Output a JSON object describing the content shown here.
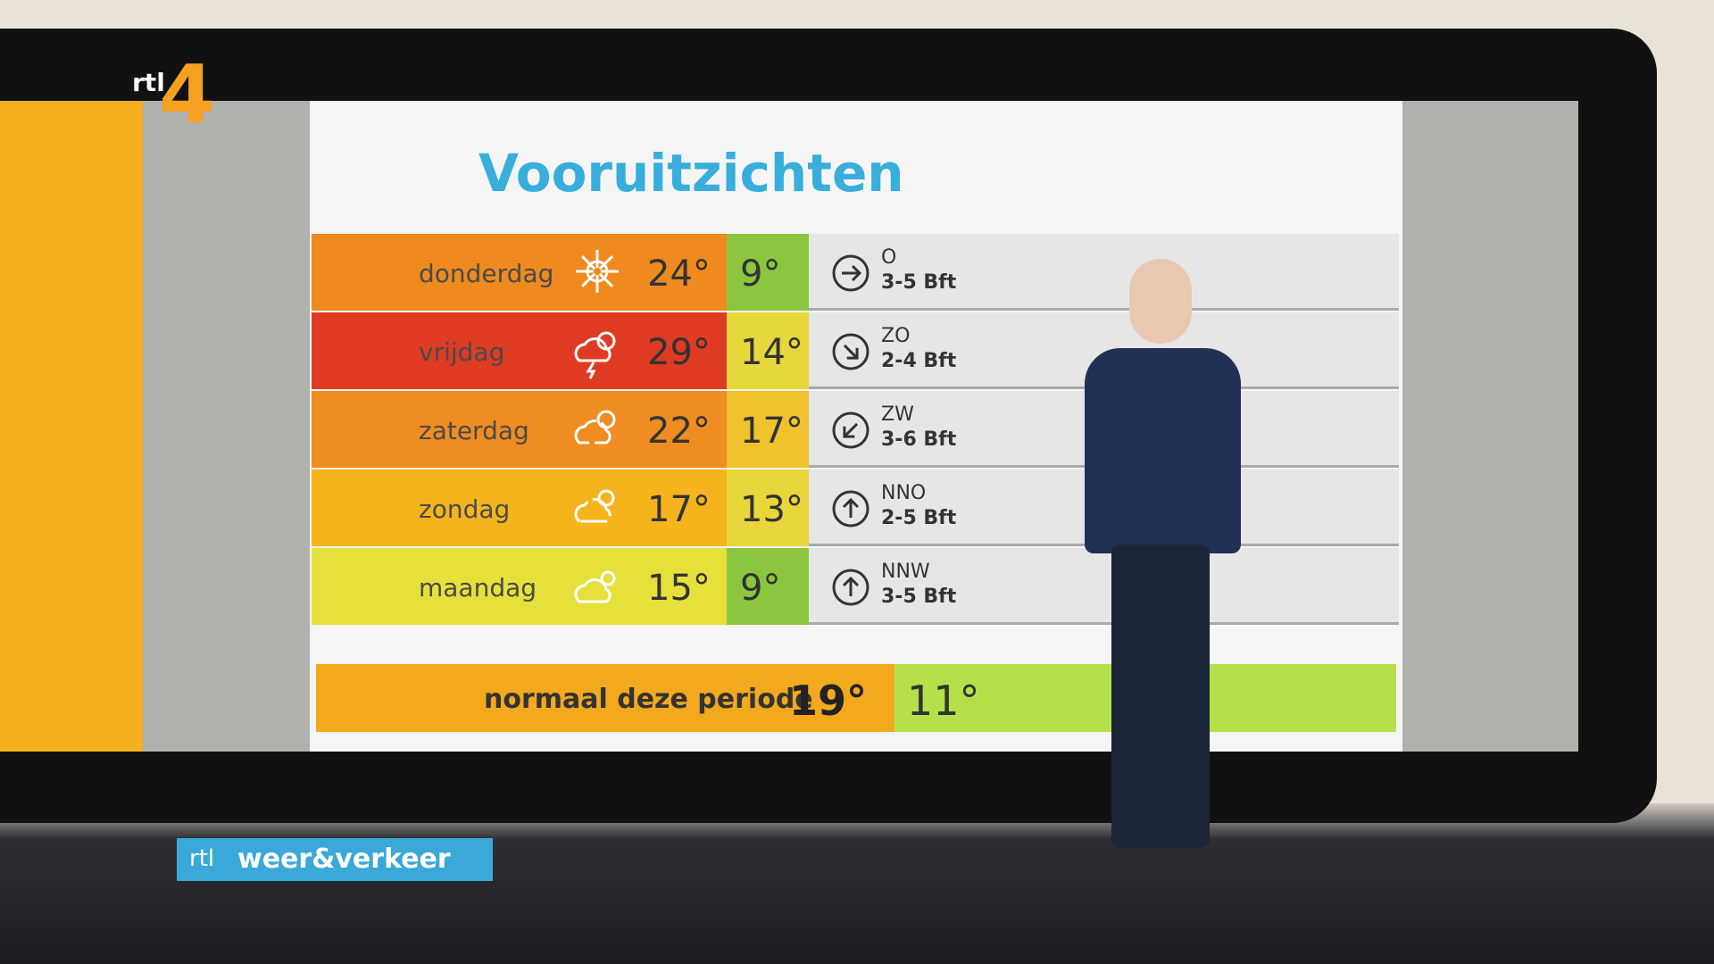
{
  "logo": {
    "channel": "rtl",
    "number": "4"
  },
  "title": "Vooruitzichten",
  "rows": [
    {
      "day": "donderdag",
      "max": "24°",
      "min": "9°",
      "wind_direction": "O",
      "wind_force": "3-5 Bft",
      "max_color": "#ee8a1e",
      "min_color": "#8cc63f"
    },
    {
      "day": "vrijdag",
      "max": "29°",
      "min": "14°",
      "wind_direction": "ZO",
      "wind_force": "2-4 Bft",
      "max_color": "#df3b22",
      "min_color": "#e6d83a"
    },
    {
      "day": "zaterdag",
      "max": "22°",
      "min": "17°",
      "wind_direction": "ZW",
      "wind_force": "3-6 Bft",
      "max_color": "#ef8c22",
      "min_color": "#f0c22e"
    },
    {
      "day": "zondag",
      "max": "17°",
      "min": "13°",
      "wind_direction": "NNO",
      "wind_force": "2-5 Bft",
      "max_color": "#f5b41c",
      "min_color": "#e8d63a"
    },
    {
      "day": "maandag",
      "max": "15°",
      "min": "9°",
      "wind_direction": "NNW",
      "wind_force": "3-5 Bft",
      "max_color": "#e6e03a",
      "min_color": "#8cc63f"
    }
  ],
  "normal": {
    "label": "normaal deze periode",
    "max": "19°",
    "min": "11°",
    "max_color": "#f2a91e",
    "min_color": "#b5e04a"
  },
  "bug": {
    "brand": "rtl",
    "name": "weer&verkeer"
  }
}
